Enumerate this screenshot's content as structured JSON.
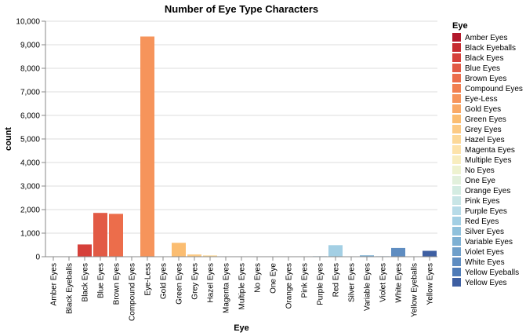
{
  "chart_data": {
    "type": "bar",
    "title": "Number of Eye Type Characters",
    "xlabel": "Eye",
    "ylabel": "count",
    "ylim": [
      0,
      10000
    ],
    "yticks": [
      0,
      1000,
      2000,
      3000,
      4000,
      5000,
      6000,
      7000,
      8000,
      9000,
      10000
    ],
    "ytick_labels": [
      "0",
      "1,000",
      "2,000",
      "3,000",
      "4,000",
      "5,000",
      "6,000",
      "7,000",
      "8,000",
      "9,000",
      "10,000"
    ],
    "grid": true,
    "legend_position": "right",
    "legend_title": "Eye",
    "categories": [
      "Amber Eyes",
      "Black Eyeballs",
      "Black Eyes",
      "Blue Eyes",
      "Brown Eyes",
      "Compound Eyes",
      "Eye-Less",
      "Gold Eyes",
      "Green Eyes",
      "Grey Eyes",
      "Hazel Eyes",
      "Magenta Eyes",
      "Multiple Eyes",
      "No Eyes",
      "One Eye",
      "Orange Eyes",
      "Pink Eyes",
      "Purple Eyes",
      "Red Eyes",
      "Silver Eyes",
      "Variable Eyes",
      "Violet Eyes",
      "White Eyes",
      "Yellow Eyeballs",
      "Yellow Eyes"
    ],
    "values": [
      5,
      3,
      520,
      1860,
      1820,
      5,
      9350,
      10,
      590,
      95,
      55,
      10,
      15,
      8,
      5,
      10,
      15,
      25,
      490,
      15,
      60,
      20,
      370,
      5,
      250
    ],
    "colors": [
      "#b2182b",
      "#c62a2f",
      "#d6403a",
      "#e25a45",
      "#ec6d4b",
      "#f17f50",
      "#f6945b",
      "#f9a966",
      "#fbbd71",
      "#fcca84",
      "#fcd898",
      "#fde3ab",
      "#f8edbf",
      "#eef2d0",
      "#e2f0dc",
      "#d4ece2",
      "#c8e5e6",
      "#b7dbe8",
      "#a3cfe4",
      "#90c1dc",
      "#7eb0d3",
      "#6f9fca",
      "#5f8dc1",
      "#4f7bb7",
      "#3e5fa2"
    ]
  }
}
